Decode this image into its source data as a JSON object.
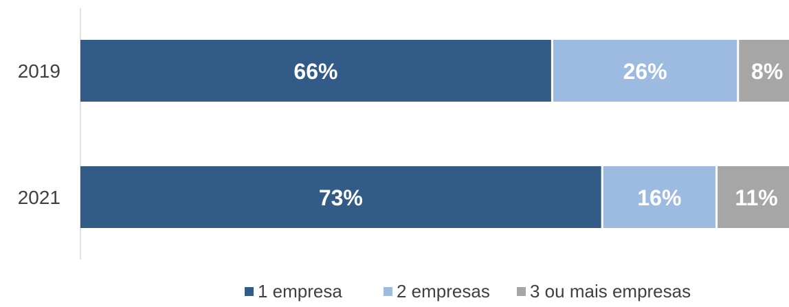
{
  "chart_data": {
    "type": "bar",
    "orientation": "horizontal",
    "stacked": true,
    "percent_stacked": true,
    "title": "",
    "xlabel": "",
    "ylabel": "",
    "xlim": [
      0,
      100
    ],
    "grid": false,
    "legend_position": "bottom",
    "categories": [
      "2019",
      "2021"
    ],
    "series": [
      {
        "name": "1 empresa",
        "values": [
          66,
          73
        ],
        "labels": [
          "66%",
          "73%"
        ],
        "color": "#335b87"
      },
      {
        "name": "2 empresas",
        "values": [
          26,
          16
        ],
        "labels": [
          "26%",
          "16%"
        ],
        "color": "#9dbbe1"
      },
      {
        "name": "3 ou mais empresas",
        "values": [
          8,
          11
        ],
        "labels": [
          "8%",
          "11%"
        ],
        "color": "#a6a6a6"
      }
    ]
  }
}
